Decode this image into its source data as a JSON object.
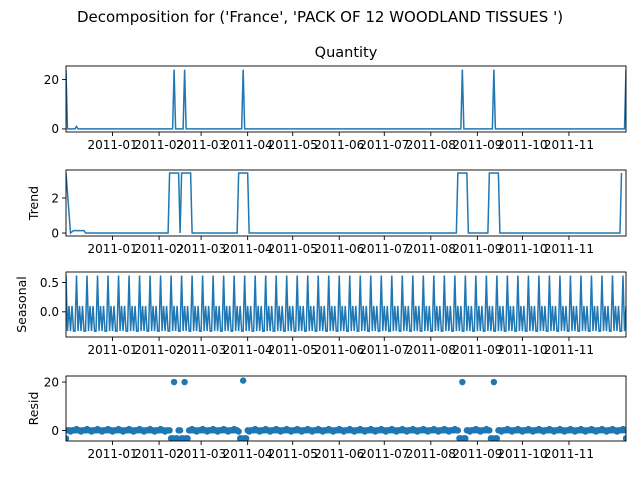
{
  "figure": {
    "suptitle": "Decomposition for ('France', 'PACK OF 12 WOODLAND TISSUES ')",
    "line_color": "#1f77b4"
  },
  "chart_data": [
    {
      "type": "line",
      "title": "Quantity",
      "ylabel": "",
      "x_range": [
        "2010-12-01",
        "2011-12-09"
      ],
      "ylim": [
        -1.25,
        25.5
      ],
      "yticks": [
        0,
        20
      ],
      "xtick_labels": [
        "2011-01",
        "2011-02",
        "2011-03",
        "2011-04",
        "2011-05",
        "2011-06",
        "2011-07",
        "2011-08",
        "2011-09",
        "2011-10",
        "2011-11"
      ],
      "baseline": 0,
      "spikes": [
        {
          "date": "2010-12-01",
          "value": 24
        },
        {
          "date": "2010-12-08",
          "value": 1
        },
        {
          "date": "2011-02-11",
          "value": 24
        },
        {
          "date": "2011-02-18",
          "value": 24
        },
        {
          "date": "2011-03-29",
          "value": 24
        },
        {
          "date": "2011-08-22",
          "value": 24
        },
        {
          "date": "2011-09-12",
          "value": 24
        },
        {
          "date": "2011-12-09",
          "value": 24
        }
      ]
    },
    {
      "type": "line",
      "title": "",
      "ylabel": "Trend",
      "x_range": [
        "2010-12-01",
        "2011-12-09"
      ],
      "ylim": [
        -0.17,
        3.6
      ],
      "yticks": [
        0,
        2
      ],
      "xtick_labels": [
        "2011-01",
        "2011-02",
        "2011-03",
        "2011-04",
        "2011-05",
        "2011-06",
        "2011-07",
        "2011-08",
        "2011-09",
        "2011-10",
        "2011-11"
      ],
      "baseline": 0,
      "plateau_value": 3.43,
      "plateaus": [
        {
          "start": "2011-02-08",
          "end": "2011-02-14"
        },
        {
          "start": "2011-02-16",
          "end": "2011-02-22"
        },
        {
          "start": "2011-03-26",
          "end": "2011-04-01"
        },
        {
          "start": "2011-08-19",
          "end": "2011-08-25"
        },
        {
          "start": "2011-09-09",
          "end": "2011-09-15"
        }
      ],
      "start_value": 3.43,
      "start_drop_date": "2010-12-04",
      "small_bump": {
        "start": "2010-12-06",
        "end": "2010-12-13",
        "value": 0.14
      },
      "end_point": {
        "date": "2011-12-06",
        "value": 3.43
      }
    },
    {
      "type": "line",
      "title": "",
      "ylabel": "Seasonal",
      "x_range": [
        "2010-12-01",
        "2011-12-09"
      ],
      "ylim": [
        -0.43,
        0.68
      ],
      "yticks": [
        0.0,
        0.5
      ],
      "ytick_labels": [
        "0.0",
        "0.5"
      ],
      "xtick_labels": [
        "2011-01",
        "2011-02",
        "2011-03",
        "2011-04",
        "2011-05",
        "2011-06",
        "2011-07",
        "2011-08",
        "2011-09",
        "2011-10",
        "2011-11"
      ],
      "period_days": 7,
      "weekly_pattern": [
        0.62,
        -0.33,
        0.1,
        -0.33,
        0.1,
        -0.33,
        -0.33
      ]
    },
    {
      "type": "scatter",
      "title": "",
      "ylabel": "Resid",
      "x_range": [
        "2010-12-01",
        "2011-12-09"
      ],
      "ylim": [
        -4.3,
        22.5
      ],
      "yticks": [
        0,
        20
      ],
      "xtick_labels": [
        "2011-01",
        "2011-02",
        "2011-03",
        "2011-04",
        "2011-05",
        "2011-06",
        "2011-07",
        "2011-08",
        "2011-09",
        "2011-10",
        "2011-11"
      ],
      "baseline": 0,
      "outliers": [
        {
          "date": "2011-02-11",
          "value": 20
        },
        {
          "date": "2011-02-18",
          "value": 20
        },
        {
          "date": "2011-03-29",
          "value": 20.6
        },
        {
          "date": "2011-08-22",
          "value": 20
        },
        {
          "date": "2011-09-12",
          "value": 20
        }
      ],
      "negative_value": -3.2
    }
  ]
}
